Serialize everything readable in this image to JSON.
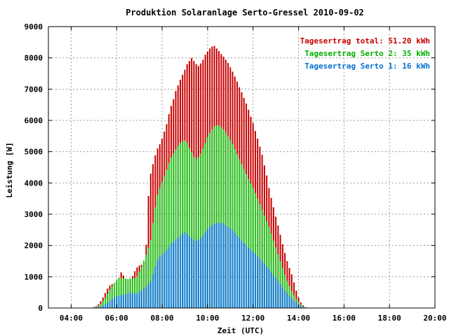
{
  "chart_data": {
    "type": "bar",
    "stacked": true,
    "title": "Produktion Solaranlage Serto-Gressel 2010-09-02",
    "xlabel": "Zeit (UTC)",
    "ylabel": "Leistung [W]",
    "xlim": [
      3.0,
      20.0
    ],
    "ylim": [
      0,
      9000
    ],
    "x_ticks": [
      4,
      6,
      8,
      10,
      12,
      14,
      16,
      18,
      20
    ],
    "x_tick_labels": [
      "04:00",
      "06:00",
      "08:00",
      "10:00",
      "12:00",
      "14:00",
      "16:00",
      "18:00",
      "20:00"
    ],
    "y_ticks": [
      0,
      1000,
      2000,
      3000,
      4000,
      5000,
      6000,
      7000,
      8000,
      9000
    ],
    "y_tick_labels": [
      "0",
      "1000",
      "2000",
      "3000",
      "4000",
      "5000",
      "6000",
      "7000",
      "8000",
      "9000"
    ],
    "grid": true,
    "legend_position": "top-right",
    "legend": [
      {
        "label": "Tagesertrag total: 51.20 kWh",
        "color": "#c80000"
      },
      {
        "label": "Tagesertrag Serto 2: 35 kWh",
        "color": "#00b000"
      },
      {
        "label": "Tagesertrag Serto 1: 16 kWh",
        "color": "#0070d0"
      }
    ],
    "colors": {
      "total": "#c80000",
      "serto2": "#22cc22",
      "serto1": "#1080e0"
    },
    "x_start": 5.0,
    "x_step": 0.1,
    "series": [
      {
        "name": "Serto 1",
        "values": [
          5,
          10,
          25,
          45,
          80,
          120,
          170,
          220,
          280,
          340,
          380,
          400,
          420,
          420,
          440,
          470,
          500,
          490,
          450,
          460,
          520,
          560,
          620,
          680,
          760,
          860,
          1080,
          1320,
          1540,
          1640,
          1700,
          1780,
          1860,
          1950,
          2050,
          2120,
          2180,
          2240,
          2320,
          2380,
          2420,
          2380,
          2300,
          2240,
          2180,
          2150,
          2180,
          2240,
          2320,
          2420,
          2520,
          2600,
          2650,
          2700,
          2720,
          2730,
          2720,
          2700,
          2650,
          2600,
          2540,
          2480,
          2400,
          2320,
          2240,
          2160,
          2080,
          2000,
          1920,
          1860,
          1800,
          1740,
          1660,
          1580,
          1500,
          1420,
          1340,
          1250,
          1160,
          1060,
          960,
          860,
          760,
          660,
          560,
          470,
          390,
          310,
          240,
          180,
          120,
          70,
          40,
          15,
          5
        ]
      },
      {
        "name": "Serto 2",
        "values": [
          10,
          20,
          40,
          80,
          140,
          200,
          280,
          360,
          420,
          460,
          520,
          540,
          540,
          520,
          500,
          460,
          450,
          460,
          500,
          560,
          640,
          760,
          900,
          1020,
          1160,
          1320,
          1640,
          1900,
          2080,
          2200,
          2320,
          2440,
          2560,
          2680,
          2760,
          2820,
          2880,
          2940,
          2960,
          2950,
          2940,
          2900,
          2820,
          2740,
          2660,
          2620,
          2640,
          2700,
          2780,
          2860,
          2940,
          3000,
          3060,
          3120,
          3120,
          3100,
          3060,
          3020,
          2960,
          2900,
          2840,
          2760,
          2680,
          2600,
          2520,
          2440,
          2360,
          2280,
          2200,
          2120,
          2040,
          1940,
          1840,
          1740,
          1640,
          1540,
          1440,
          1340,
          1220,
          1100,
          980,
          860,
          740,
          620,
          500,
          400,
          310,
          230,
          170,
          110,
          70,
          40,
          20,
          10,
          5
        ]
      },
      {
        "name": "total",
        "values": [
          30,
          60,
          120,
          220,
          340,
          480,
          620,
          720,
          760,
          760,
          840,
          960,
          1140,
          1040,
          920,
          840,
          900,
          1020,
          1180,
          1300,
          1360,
          1380,
          1460,
          2020,
          3580,
          4300,
          4600,
          4880,
          5100,
          5240,
          5420,
          5640,
          5880,
          6200,
          6460,
          6680,
          6940,
          7120,
          7300,
          7460,
          7620,
          7800,
          7900,
          8000,
          7900,
          7800,
          7740,
          7820,
          7940,
          8100,
          8200,
          8300,
          8360,
          8380,
          8300,
          8220,
          8120,
          8040,
          7940,
          7840,
          7700,
          7560,
          7400,
          7240,
          7060,
          6900,
          6720,
          6540,
          6340,
          6120,
          5920,
          5660,
          5420,
          5160,
          4900,
          4560,
          4240,
          3840,
          3520,
          3220,
          2920,
          2640,
          2340,
          2040,
          1760,
          1500,
          1280,
          1080,
          820,
          560,
          340,
          180,
          90,
          30,
          10
        ]
      }
    ]
  }
}
